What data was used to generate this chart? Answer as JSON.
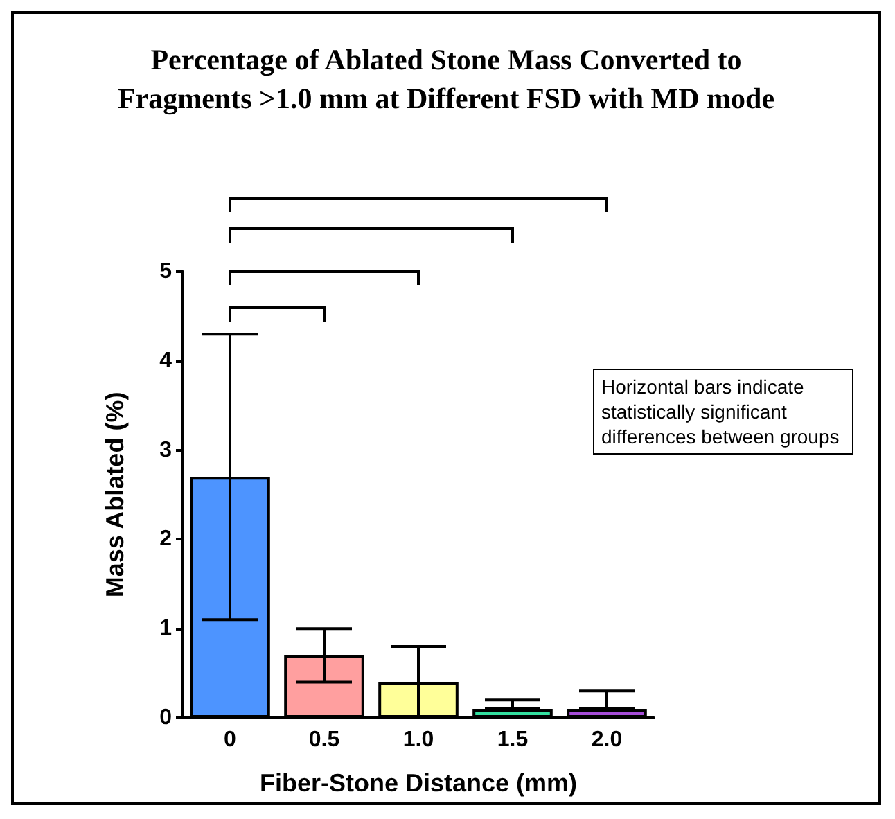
{
  "chart_data": {
    "type": "bar",
    "title": "Percentage of Ablated Stone Mass Converted to\nFragments >1.0 mm at Different FSD with MD mode",
    "xlabel": "Fiber-Stone Distance (mm)",
    "ylabel": "Mass Ablated (%)",
    "categories": [
      "0",
      "0.5",
      "1.0",
      "1.5",
      "2.0"
    ],
    "values": [
      2.7,
      0.7,
      0.4,
      0.1,
      0.1
    ],
    "colors": [
      "#4d94ff",
      "#ff9f9f",
      "#ffff99",
      "#33e0a0",
      "#a64dd9"
    ],
    "errors": [
      1.6,
      0.3,
      0.4,
      [
        0.1,
        0.2
      ],
      [
        0.1,
        0.3
      ]
    ],
    "ylim": [
      0,
      5
    ],
    "yticks": [
      0,
      1,
      2,
      3,
      4,
      5
    ],
    "grid": false,
    "annotations": [
      "Horizontal bars indicate statistically significant differences between groups"
    ]
  }
}
